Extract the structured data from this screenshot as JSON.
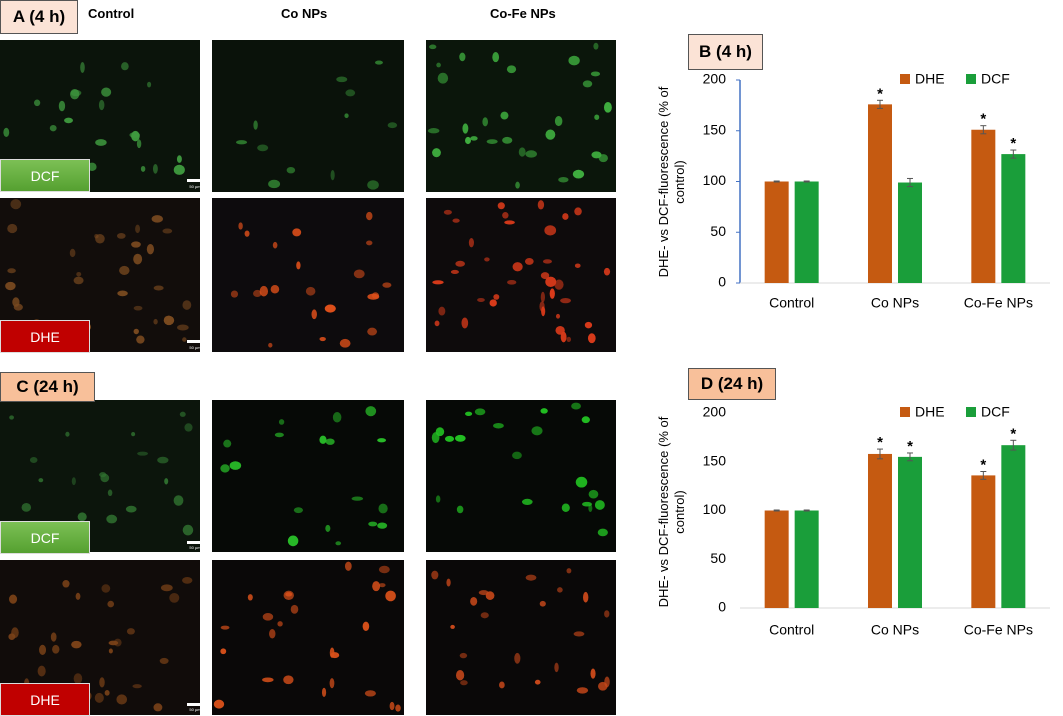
{
  "panel_labels": [
    "A (4 h)",
    "C (24 h)"
  ],
  "column_headers": [
    "Control",
    "Co NPs",
    "Co-Fe NPs"
  ],
  "stain_labels": [
    "DCF",
    "DHE"
  ],
  "scale_bar": "50 µm",
  "chart_data": [
    {
      "type": "bar",
      "title": "B (4 h)",
      "y_label": "DHE- vs DCF-fluorescence (% of control)",
      "categories": [
        "Control",
        "Co NPs",
        "Co-Fe NPs"
      ],
      "series": [
        {
          "name": "DHE",
          "color": "#c55a11",
          "values": [
            100,
            176,
            151
          ],
          "errors": [
            0.5,
            4,
            4
          ],
          "significance": [
            null,
            "*",
            "*"
          ]
        },
        {
          "name": "DCF",
          "color": "#1a9e3a",
          "values": [
            100,
            99,
            127
          ],
          "errors": [
            0.5,
            4,
            4
          ],
          "significance": [
            null,
            null,
            "*"
          ]
        }
      ],
      "ylim": [
        0,
        200
      ],
      "yticks": [
        0,
        50,
        100,
        150,
        200
      ],
      "y_axis_line": true,
      "legend": "top-right"
    },
    {
      "type": "bar",
      "title": "D (24 h)",
      "y_label": "DHE- vs DCF-fluorescence (% of control)",
      "categories": [
        "Control",
        "Co NPs",
        "Co-Fe NPs"
      ],
      "series": [
        {
          "name": "DHE",
          "color": "#c55a11",
          "values": [
            100,
            158,
            136
          ],
          "errors": [
            0.5,
            5,
            4
          ],
          "significance": [
            null,
            "*",
            "*"
          ]
        },
        {
          "name": "DCF",
          "color": "#1a9e3a",
          "values": [
            100,
            155,
            167
          ],
          "errors": [
            0.5,
            4,
            5
          ],
          "significance": [
            null,
            "*",
            "*"
          ]
        }
      ],
      "ylim": [
        0,
        200
      ],
      "yticks": [
        0,
        50,
        100,
        150,
        200
      ],
      "y_axis_line": false,
      "legend": "top-right"
    }
  ]
}
